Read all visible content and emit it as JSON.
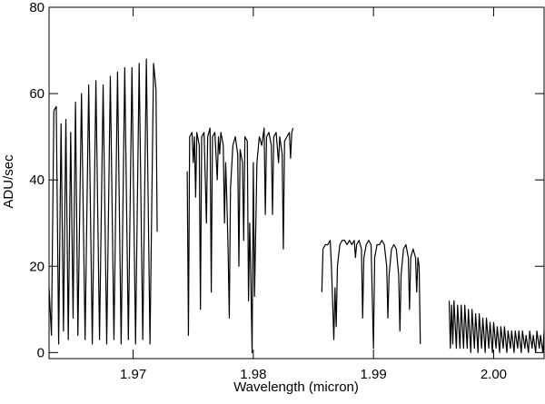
{
  "chart_data": {
    "type": "line",
    "xlabel": "Wavelength (micron)",
    "ylabel": "ADU/sec",
    "color": "#000000",
    "xlim": [
      1.963,
      2.0042
    ],
    "ylim": [
      -1.4,
      80
    ],
    "xticks": [
      1.97,
      1.98,
      1.99,
      {
        "value": 2,
        "label": "2.00"
      }
    ],
    "yticks": [
      0,
      20,
      40,
      60,
      80
    ],
    "x": [
      1.963,
      1.9632,
      1.9634,
      1.9636,
      1.9638,
      1.964,
      1.9642,
      1.9644,
      1.9646,
      1.9648,
      1.965,
      1.9652,
      1.9654,
      1.9657,
      1.966,
      1.9663,
      1.9666,
      1.9669,
      1.9672,
      1.9675,
      1.9678,
      1.9681,
      1.9684,
      1.9687,
      1.969,
      1.9693,
      1.9696,
      1.9699,
      1.9702,
      1.9705,
      1.9708,
      1.9711,
      1.9714,
      1.9717,
      1.9719,
      1.972,
      1.973,
      1.9745,
      1.9746,
      1.9747,
      1.9749,
      1.975,
      1.9751,
      1.9752,
      1.9753,
      1.9755,
      1.9756,
      1.9757,
      1.9759,
      1.9761,
      1.9762,
      1.9764,
      1.9765,
      1.9766,
      1.9768,
      1.977,
      1.9771,
      1.9772,
      1.9773,
      1.9775,
      1.9776,
      1.9777,
      1.9778,
      1.9779,
      1.978,
      1.9781,
      1.9783,
      1.9785,
      1.9787,
      1.9788,
      1.9789,
      1.9791,
      1.9792,
      1.9793,
      1.9795,
      1.9796,
      1.9797,
      1.9798,
      1.9799,
      1.98,
      1.9801,
      1.9802,
      1.9803,
      1.9805,
      1.9807,
      1.9809,
      1.981,
      1.9811,
      1.9813,
      1.9815,
      1.9816,
      1.9817,
      1.9819,
      1.9821,
      1.9822,
      1.9824,
      1.9825,
      1.9826,
      1.9828,
      1.983,
      1.9831,
      1.9832,
      1.9833,
      1.984,
      1.9857,
      1.9858,
      1.986,
      1.9862,
      1.9864,
      1.9865,
      1.9866,
      1.9867,
      1.9868,
      1.9869,
      1.987,
      1.9872,
      1.9874,
      1.9876,
      1.9878,
      1.988,
      1.9882,
      1.9884,
      1.9885,
      1.9886,
      1.9888,
      1.989,
      1.9891,
      1.9892,
      1.9894,
      1.9896,
      1.9898,
      1.99,
      1.9901,
      1.9903,
      1.9905,
      1.9907,
      1.9909,
      1.9911,
      1.9912,
      1.9913,
      1.9915,
      1.9917,
      1.9919,
      1.9921,
      1.9922,
      1.9923,
      1.9925,
      1.9927,
      1.9929,
      1.993,
      1.9931,
      1.9933,
      1.9935,
      1.9936,
      1.9937,
      1.9938,
      1.9939,
      1.995,
      1.9963,
      1.9964,
      1.9965,
      1.9966,
      1.9967,
      1.9969,
      1.997,
      1.9972,
      1.9973,
      1.9975,
      1.9976,
      1.9978,
      1.9979,
      1.9981,
      1.9982,
      1.9984,
      1.9985,
      1.9987,
      1.9988,
      1.999,
      1.9991,
      1.9993,
      1.9994,
      1.9996,
      1.9997,
      1.9999,
      2.0,
      2.0002,
      2.0003,
      2.0005,
      2.0006,
      2.0008,
      2.0009,
      2.0011,
      2.0012,
      2.0014,
      2.0015,
      2.0017,
      2.0018,
      2.002,
      2.0021,
      2.0023,
      2.0024,
      2.0026,
      2.0027,
      2.0029,
      2.003,
      2.0032,
      2.0033,
      2.0035,
      2.0036,
      2.0038,
      2.0039,
      2.0041,
      2.0042
    ],
    "values": [
      15,
      4,
      56,
      57,
      2,
      53,
      5,
      54,
      3,
      51,
      8,
      58,
      4,
      60,
      3,
      62,
      2,
      63,
      3,
      62,
      2,
      64,
      3,
      65,
      2,
      66,
      3,
      66,
      2,
      67,
      3,
      68,
      2,
      67,
      61,
      28,
      null,
      42,
      4,
      50,
      51,
      44,
      50,
      36,
      51,
      48,
      10,
      50,
      51,
      30,
      50,
      52,
      14,
      50,
      51,
      40,
      50,
      46,
      51,
      48,
      30,
      44,
      35,
      24,
      8,
      38,
      48,
      50,
      46,
      20,
      47,
      44,
      26,
      50,
      49,
      12,
      30,
      16,
      0,
      44,
      13,
      28,
      44,
      50,
      48,
      52,
      32,
      50,
      51,
      48,
      32,
      50,
      51,
      44,
      50,
      46,
      24,
      49,
      50,
      51,
      45,
      51,
      52,
      null,
      14,
      24,
      25,
      25,
      26,
      20,
      12,
      3,
      15,
      6,
      20,
      25,
      26,
      26,
      25,
      26,
      25,
      26,
      22,
      25,
      26,
      24,
      8,
      22,
      25,
      26,
      25,
      1,
      22,
      25,
      25,
      26,
      25,
      20,
      8,
      18,
      24,
      25,
      24,
      18,
      5,
      18,
      24,
      25,
      22,
      10,
      22,
      24,
      22,
      14,
      22,
      20,
      2,
      null,
      12,
      1,
      11,
      2,
      12,
      1,
      11,
      1,
      11,
      1,
      11,
      1,
      10,
      0,
      10,
      1,
      9,
      0,
      9,
      1,
      8,
      0,
      8,
      1,
      7,
      0,
      7,
      1,
      6,
      0,
      6,
      1,
      6,
      0,
      5,
      1,
      5,
      0,
      5,
      1,
      5,
      0,
      5,
      1,
      4,
      0,
      5,
      1,
      4,
      0,
      5,
      1,
      4,
      0,
      5
    ]
  }
}
